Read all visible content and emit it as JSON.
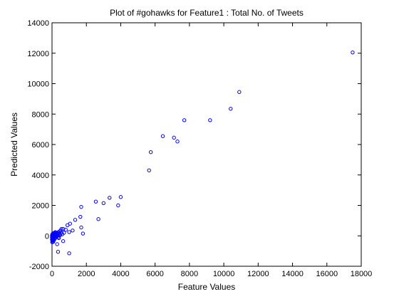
{
  "chart_data": {
    "type": "scatter",
    "title": "Plot of #gohawks for Feature1 : Total No. of Tweets",
    "xlabel": "Feature Values",
    "ylabel": "Predicted Values",
    "xlim": [
      0,
      18000
    ],
    "ylim": [
      -2000,
      14000
    ],
    "xticks": [
      0,
      2000,
      4000,
      6000,
      8000,
      10000,
      12000,
      14000,
      16000,
      18000
    ],
    "yticks": [
      -2000,
      0,
      2000,
      4000,
      6000,
      8000,
      10000,
      12000,
      14000
    ],
    "grid": false,
    "marker": "circle-open",
    "colors": {
      "marker": "#0000ff",
      "axes": "#000000",
      "background": "#ffffff"
    },
    "points": [
      [
        17500,
        12050
      ],
      [
        10900,
        9450
      ],
      [
        10400,
        8350
      ],
      [
        9200,
        7600
      ],
      [
        7700,
        7600
      ],
      [
        6450,
        6550
      ],
      [
        7100,
        6450
      ],
      [
        7300,
        6200
      ],
      [
        5750,
        5500
      ],
      [
        5650,
        4300
      ],
      [
        4000,
        2550
      ],
      [
        3350,
        2500
      ],
      [
        2550,
        2250
      ],
      [
        3000,
        2150
      ],
      [
        3850,
        2000
      ],
      [
        1700,
        1900
      ],
      [
        1350,
        1050
      ],
      [
        2700,
        1100
      ],
      [
        1650,
        1250
      ],
      [
        1050,
        800
      ],
      [
        900,
        700
      ],
      [
        1200,
        350
      ],
      [
        1700,
        550
      ],
      [
        800,
        400
      ],
      [
        650,
        450
      ],
      [
        1000,
        250
      ],
      [
        1800,
        150
      ],
      [
        700,
        200
      ],
      [
        400,
        -150
      ],
      [
        650,
        -350
      ],
      [
        300,
        -550
      ],
      [
        1000,
        -1150
      ],
      [
        350,
        -1050
      ],
      [
        550,
        450
      ],
      [
        500,
        350
      ],
      [
        450,
        300
      ],
      [
        420,
        150
      ],
      [
        380,
        250
      ],
      [
        350,
        50
      ],
      [
        320,
        180
      ],
      [
        290,
        100
      ],
      [
        270,
        -50
      ],
      [
        250,
        200
      ],
      [
        230,
        80
      ],
      [
        210,
        -120
      ],
      [
        200,
        120
      ],
      [
        180,
        30
      ],
      [
        160,
        -200
      ],
      [
        150,
        150
      ],
      [
        130,
        -60
      ],
      [
        120,
        60
      ],
      [
        110,
        -300
      ],
      [
        100,
        -150
      ],
      [
        90,
        20
      ],
      [
        80,
        -80
      ],
      [
        70,
        100
      ],
      [
        60,
        -250
      ],
      [
        50,
        -20
      ],
      [
        40,
        -120
      ],
      [
        30,
        50
      ],
      [
        20,
        -350
      ],
      [
        15,
        -180
      ],
      [
        10,
        0
      ],
      [
        5,
        -60
      ],
      [
        0,
        -250
      ],
      [
        0,
        -120
      ],
      [
        0,
        30
      ],
      [
        600,
        100
      ],
      [
        550,
        200
      ],
      [
        480,
        50
      ],
      [
        430,
        80
      ],
      [
        360,
        -100
      ],
      [
        310,
        -20
      ],
      [
        260,
        0
      ],
      [
        220,
        -30
      ],
      [
        190,
        240
      ],
      [
        140,
        200
      ],
      [
        95,
        180
      ],
      [
        65,
        -400
      ],
      [
        35,
        -280
      ],
      [
        25,
        120
      ],
      [
        12,
        -420
      ]
    ]
  }
}
